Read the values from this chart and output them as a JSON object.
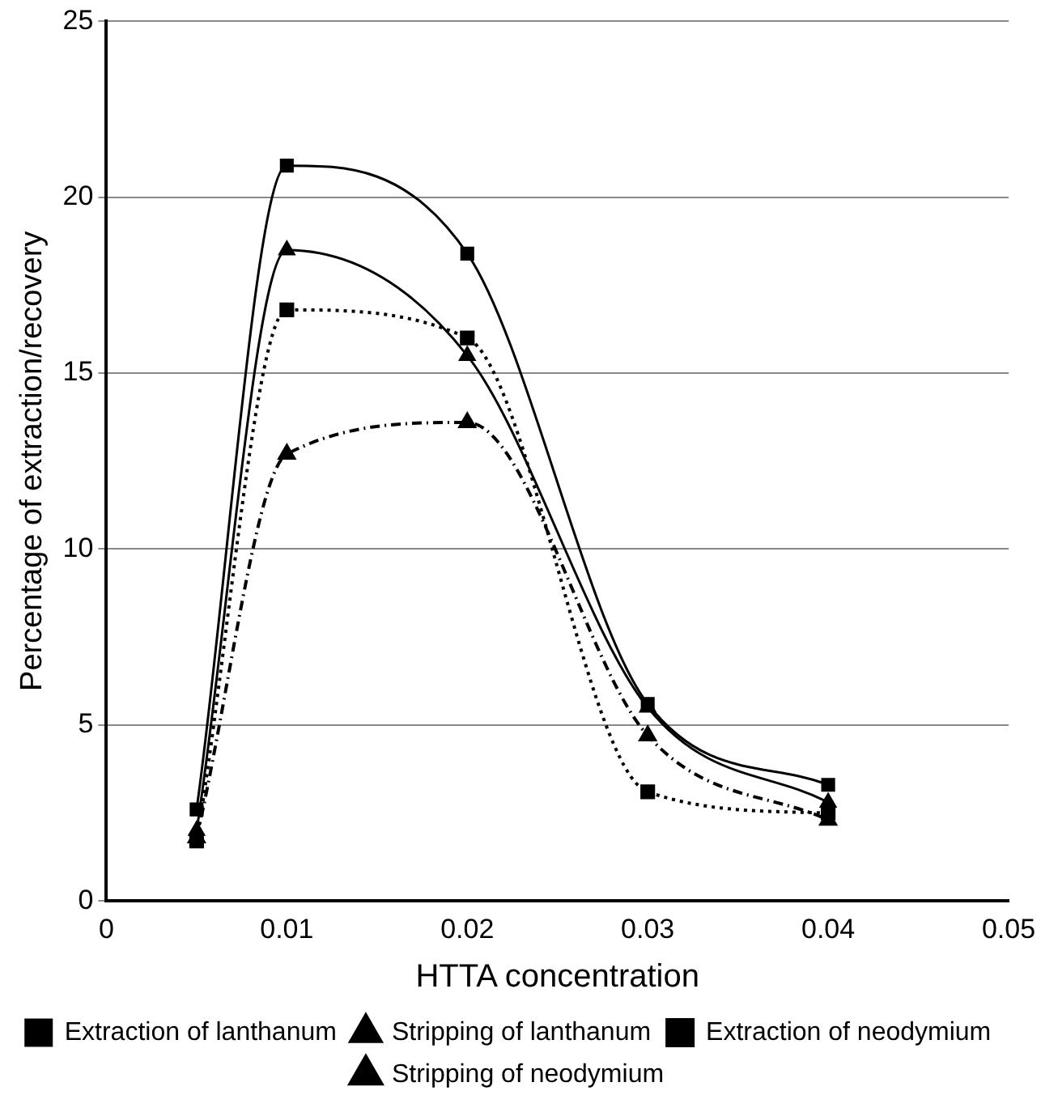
{
  "chart_data": {
    "type": "line",
    "xlabel": "HTTA concentration",
    "ylabel": "Percentage of extraction/recovery",
    "x": [
      0.005,
      0.01,
      0.02,
      0.03,
      0.04
    ],
    "series": [
      {
        "name": "Extraction of lanthanum",
        "color": "#000000",
        "marker": "square",
        "line_style": "solid",
        "values": [
          2.6,
          20.9,
          18.4,
          5.6,
          3.3
        ]
      },
      {
        "name": "Stripping of lanthanum",
        "color": "#000000",
        "marker": "triangle",
        "line_style": "solid",
        "values": [
          2.0,
          18.5,
          15.5,
          5.5,
          2.8
        ]
      },
      {
        "name": "Extraction of neodymium",
        "color": "#000000",
        "marker": "square",
        "line_style": "dotted",
        "values": [
          1.7,
          16.8,
          16.0,
          3.1,
          2.5
        ]
      },
      {
        "name": "Stripping of neodymium",
        "color": "#000000",
        "marker": "triangle",
        "line_style": "dashed",
        "values": [
          1.8,
          12.7,
          13.6,
          4.7,
          2.3
        ]
      }
    ],
    "xlim": [
      0,
      0.05
    ],
    "xticks": [
      0,
      0.01,
      0.02,
      0.03,
      0.04,
      0.05
    ],
    "ylim": [
      0,
      25
    ],
    "yticks": [
      0,
      5,
      10,
      15,
      20,
      25
    ],
    "grid": "y",
    "legend": "bottom"
  }
}
